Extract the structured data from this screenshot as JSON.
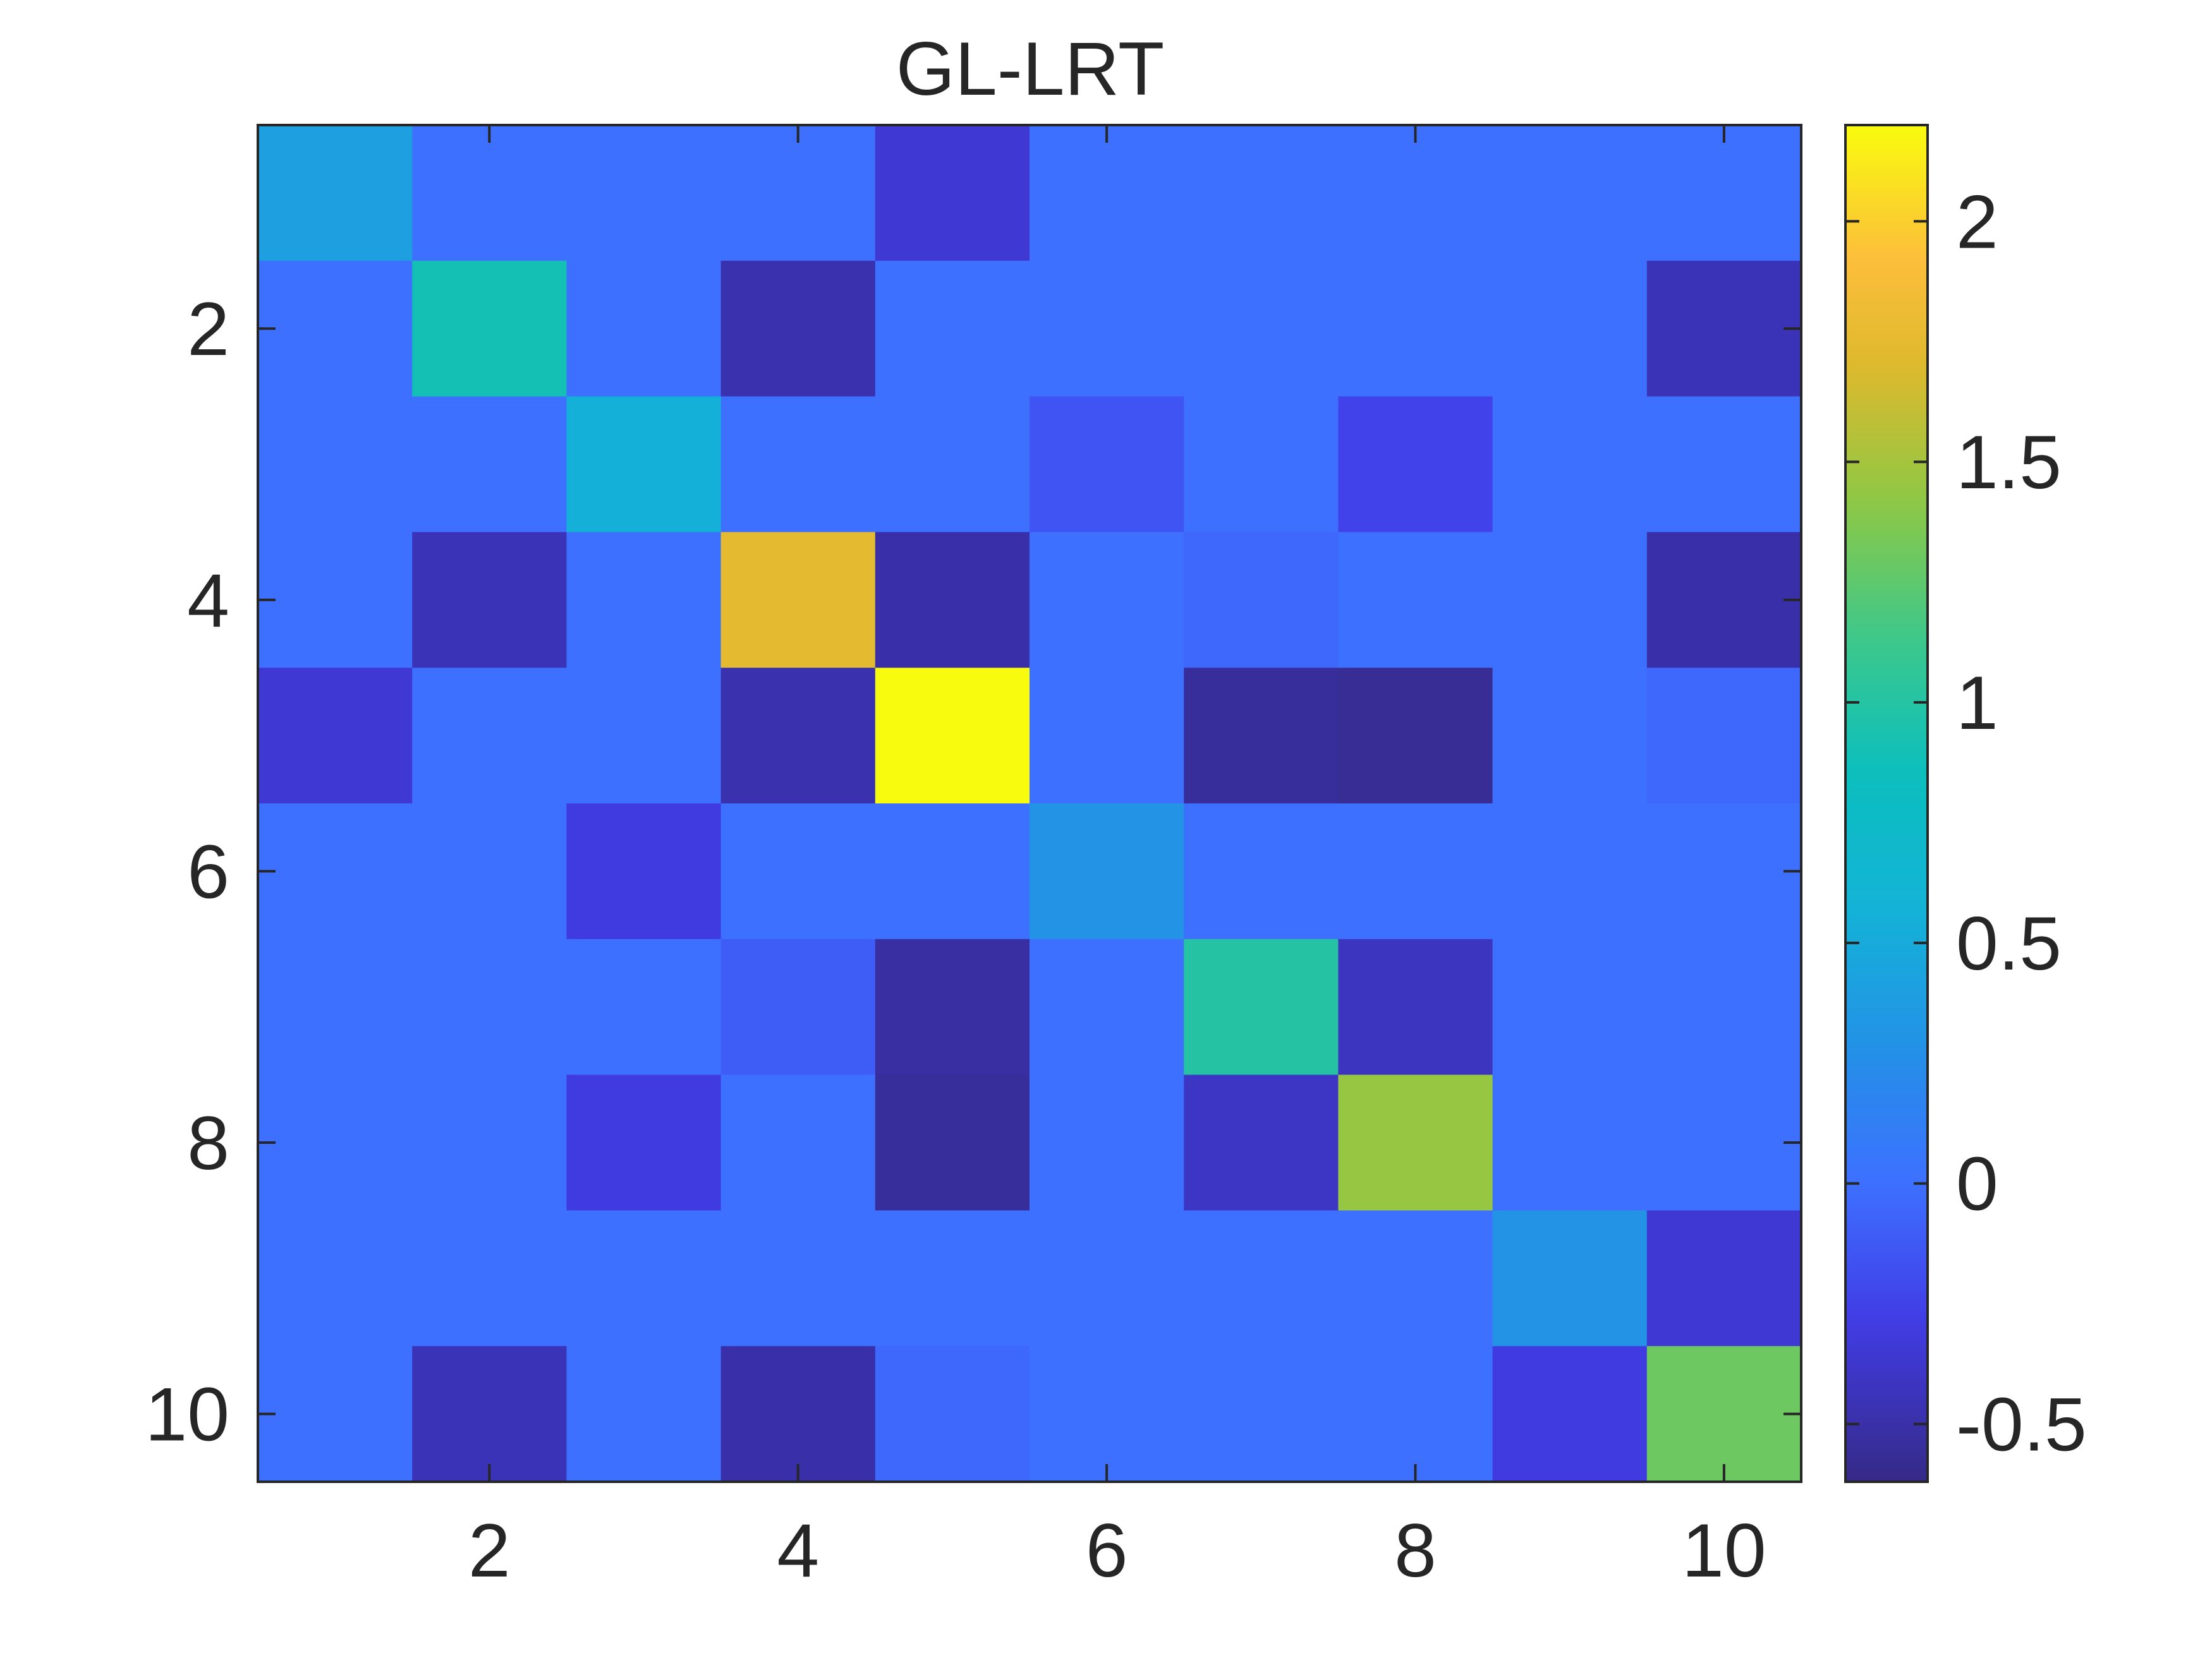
{
  "chart_data": {
    "type": "heatmap",
    "title": "GL-LRT",
    "xlabel": "",
    "ylabel": "",
    "colormap": "parula",
    "clim": [
      -0.62,
      2.2
    ],
    "x_ticks": [
      2,
      4,
      6,
      8,
      10
    ],
    "y_ticks": [
      2,
      4,
      6,
      8,
      10
    ],
    "colorbar_ticks": [
      -0.5,
      0,
      0.5,
      1,
      1.5,
      2
    ],
    "colorbar_tick_labels": [
      "-0.5",
      "0",
      "0.5",
      "1",
      "1.5",
      "2"
    ],
    "rows": 10,
    "cols": 10,
    "matrix": [
      [
        0.4,
        0.0,
        0.0,
        0.0,
        -0.35,
        0.0,
        0.0,
        0.0,
        0.0,
        0.0
      ],
      [
        0.0,
        0.9,
        0.0,
        -0.48,
        0.0,
        0.0,
        0.0,
        0.0,
        0.0,
        -0.45
      ],
      [
        0.0,
        0.0,
        0.55,
        0.0,
        0.0,
        -0.15,
        0.0,
        -0.25,
        0.0,
        0.0
      ],
      [
        0.0,
        -0.45,
        0.0,
        1.75,
        -0.5,
        0.0,
        -0.05,
        0.0,
        0.0,
        -0.5
      ],
      [
        -0.35,
        0.0,
        0.0,
        -0.48,
        2.2,
        0.0,
        -0.55,
        -0.57,
        0.0,
        -0.05
      ],
      [
        0.0,
        0.0,
        -0.3,
        0.0,
        0.0,
        0.3,
        0.0,
        0.0,
        0.0,
        0.0
      ],
      [
        0.0,
        0.0,
        0.0,
        -0.1,
        -0.52,
        0.0,
        1.0,
        -0.42,
        0.0,
        0.0
      ],
      [
        0.0,
        0.0,
        -0.3,
        0.0,
        -0.55,
        0.0,
        -0.4,
        1.45,
        0.0,
        0.0
      ],
      [
        0.0,
        0.0,
        0.0,
        0.0,
        0.0,
        0.0,
        0.0,
        0.0,
        0.3,
        -0.35
      ],
      [
        0.0,
        -0.45,
        0.0,
        -0.5,
        -0.05,
        0.0,
        0.0,
        0.0,
        -0.3,
        1.3
      ]
    ]
  }
}
